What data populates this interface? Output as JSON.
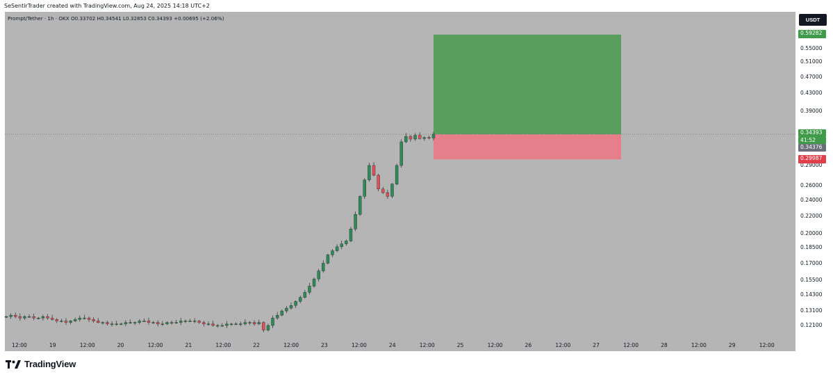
{
  "header": {
    "credit": "SeSentirTrader created with TradingView.com, Aug 24, 2025 14:18 UTC+2"
  },
  "legend": {
    "text": "Prompt/Tether · 1h · OKX  O0.33702  H0.34541  L0.32853  C0.34393  +0.00695 (+2.06%)"
  },
  "price_axis": {
    "currency": "USDT",
    "ticks": [
      "0.55000",
      "0.51000",
      "0.47000",
      "0.43000",
      "0.39000",
      "0.29000",
      "0.26000",
      "0.24000",
      "0.22000",
      "0.20000",
      "0.18500",
      "0.17000",
      "0.15500",
      "0.14300",
      "0.13100",
      "0.12100"
    ],
    "tags": {
      "target": "0.59282",
      "last_price": "0.34393",
      "countdown": "41:52",
      "entry": "0.34376",
      "stop": "0.29987"
    }
  },
  "time_axis": {
    "labels": [
      "12:00",
      "19",
      "12:00",
      "20",
      "12:00",
      "21",
      "12:00",
      "22",
      "12:00",
      "23",
      "12:00",
      "24",
      "12:00",
      "25",
      "12:00",
      "26",
      "12:00",
      "27",
      "12:00",
      "28",
      "12:00",
      "29",
      "12:00"
    ]
  },
  "footer": {
    "brand": "TradingView"
  },
  "colors": {
    "background": "#b5b5b5",
    "up": "#2e8b57",
    "down": "#e0505a",
    "profit_zone": "#5a9e5e",
    "loss_zone": "#e77f8a",
    "target_tag": "#3f9a4a",
    "stop_tag": "#e0404a",
    "entry_tag": "#6b6f7a"
  },
  "chart_data": {
    "type": "candlestick",
    "symbol": "Prompt/Tether",
    "interval": "1h",
    "exchange": "OKX",
    "y_scale": "log",
    "ylim": [
      0.115,
      0.62
    ],
    "last": {
      "open": 0.33702,
      "high": 0.34541,
      "low": 0.32853,
      "close": 0.34393,
      "change": 0.00695,
      "change_pct": 2.06
    },
    "position": {
      "entry": 0.34376,
      "target": 0.59282,
      "stop": 0.29987
    },
    "price_path": [
      0.127,
      0.128,
      0.127,
      0.126,
      0.127,
      0.127,
      0.126,
      0.126,
      0.127,
      0.126,
      0.125,
      0.124,
      0.124,
      0.123,
      0.124,
      0.125,
      0.126,
      0.126,
      0.125,
      0.124,
      0.123,
      0.123,
      0.122,
      0.122,
      0.122,
      0.122,
      0.123,
      0.123,
      0.123,
      0.124,
      0.124,
      0.123,
      0.123,
      0.122,
      0.122,
      0.123,
      0.123,
      0.123,
      0.124,
      0.124,
      0.124,
      0.124,
      0.123,
      0.122,
      0.122,
      0.121,
      0.121,
      0.121,
      0.122,
      0.122,
      0.122,
      0.122,
      0.123,
      0.123,
      0.122,
      0.123,
      0.118,
      0.121,
      0.126,
      0.128,
      0.131,
      0.133,
      0.135,
      0.138,
      0.141,
      0.145,
      0.15,
      0.156,
      0.163,
      0.17,
      0.178,
      0.182,
      0.186,
      0.189,
      0.192,
      0.205,
      0.222,
      0.245,
      0.268,
      0.29,
      0.275,
      0.255,
      0.25,
      0.245,
      0.262,
      0.29,
      0.33,
      0.34,
      0.335,
      0.342,
      0.336,
      0.338,
      0.337,
      0.344
    ]
  }
}
